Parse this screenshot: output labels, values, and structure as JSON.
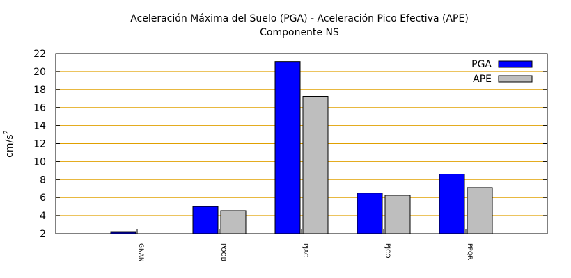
{
  "chart_data": {
    "type": "bar",
    "title": "Aceleración Máxima del Suelo (PGA) -  Aceleración Pico Efectiva (APE)",
    "subtitle": "Componente NS",
    "ylabel_base": "cm/s",
    "ylabel_sup": "2",
    "categories": [
      "GNAN",
      "POOB",
      "PJAC",
      "PJCO",
      "PPQR"
    ],
    "series": [
      {
        "name": "PGA",
        "color": "#0000ff",
        "values": [
          2.15,
          5.0,
          21.1,
          6.5,
          8.6
        ]
      },
      {
        "name": "APE",
        "color": "#bebebe",
        "values": [
          null,
          4.55,
          17.25,
          6.25,
          7.1
        ]
      }
    ],
    "ylim": [
      2,
      22
    ],
    "yticks": [
      2,
      4,
      6,
      8,
      10,
      12,
      14,
      16,
      18,
      20,
      22
    ],
    "grid": true,
    "grid_color": "#e0a000",
    "legend_position": "top-right"
  }
}
